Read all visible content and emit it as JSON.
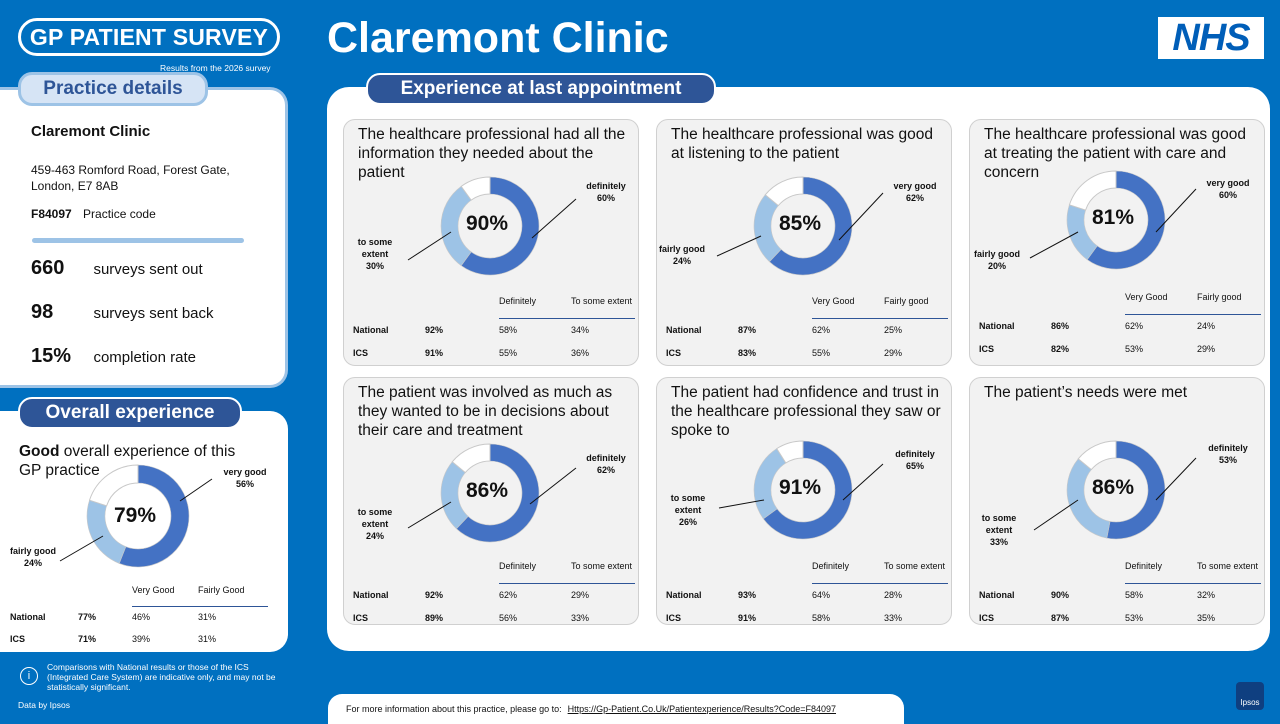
{
  "header": {
    "survey_logo": "GP PATIENT SURVEY",
    "survey_subtitle": "Results from the 2026 survey",
    "title": "Claremont Clinic",
    "nhs_logo": "NHS"
  },
  "practice": {
    "heading": "Practice details",
    "name": "Claremont Clinic",
    "address_line1": "459-463 Romford Road, Forest Gate,",
    "address_line2": "London, E7 8AB",
    "code_value": "F84097",
    "code_label": "Practice code",
    "sent_out_value": "660",
    "sent_out_label": "surveys sent out",
    "sent_back_value": "98",
    "sent_back_label": "surveys sent back",
    "completion_value": "15%",
    "completion_label": "completion rate"
  },
  "overall": {
    "heading": "Overall experience",
    "title_bold": "Good",
    "title_rest": " overall experience of this GP practice",
    "percent": "79%",
    "label_primary": "very good\n56%",
    "label_secondary": "fairly good\n24%",
    "col1": "Very Good",
    "col2": "Fairly Good",
    "rows": [
      {
        "label": "National",
        "total": "77%",
        "v1": "46%",
        "v2": "31%"
      },
      {
        "label": "ICS",
        "total": "71%",
        "v1": "39%",
        "v2": "31%"
      }
    ]
  },
  "experience": {
    "heading": "Experience at last appointment",
    "cards": [
      {
        "title": "The healthcare professional had all the information they needed about the patient",
        "percent": "90%",
        "label_primary": "definitely\n60%",
        "label_secondary": "to some\nextent\n30%",
        "col1": "Definitely",
        "col2": "To some extent",
        "rows": [
          {
            "label": "National",
            "total": "92%",
            "v1": "58%",
            "v2": "34%"
          },
          {
            "label": "ICS",
            "total": "91%",
            "v1": "55%",
            "v2": "36%"
          }
        ]
      },
      {
        "title": "The healthcare professional was good at listening to the patient",
        "percent": "85%",
        "label_primary": "very good\n62%",
        "label_secondary": "fairly good\n24%",
        "col1": "Very Good",
        "col2": "Fairly good",
        "rows": [
          {
            "label": "National",
            "total": "87%",
            "v1": "62%",
            "v2": "25%"
          },
          {
            "label": "ICS",
            "total": "83%",
            "v1": "55%",
            "v2": "29%"
          }
        ]
      },
      {
        "title": "The healthcare professional was good at treating the patient with care and concern",
        "percent": "81%",
        "label_primary": "very good\n60%",
        "label_secondary": "fairly good\n20%",
        "col1": "Very Good",
        "col2": "Fairly good",
        "rows": [
          {
            "label": "National",
            "total": "86%",
            "v1": "62%",
            "v2": "24%"
          },
          {
            "label": "ICS",
            "total": "82%",
            "v1": "53%",
            "v2": "29%"
          }
        ]
      },
      {
        "title": "The patient was involved as much as they wanted to be in decisions about their care and treatment",
        "percent": "86%",
        "label_primary": "definitely\n62%",
        "label_secondary": "to some\nextent\n24%",
        "col1": "Definitely",
        "col2": "To some extent",
        "rows": [
          {
            "label": "National",
            "total": "92%",
            "v1": "62%",
            "v2": "29%"
          },
          {
            "label": "ICS",
            "total": "89%",
            "v1": "56%",
            "v2": "33%"
          }
        ]
      },
      {
        "title": "The patient had confidence and trust in the healthcare professional they saw or spoke to",
        "percent": "91%",
        "label_primary": "definitely\n65%",
        "label_secondary": "to some\nextent\n26%",
        "col1": "Definitely",
        "col2": "To some extent",
        "rows": [
          {
            "label": "National",
            "total": "93%",
            "v1": "64%",
            "v2": "28%"
          },
          {
            "label": "ICS",
            "total": "91%",
            "v1": "58%",
            "v2": "33%"
          }
        ]
      },
      {
        "title": "The patient’s needs were met",
        "percent": "86%",
        "label_primary": "definitely\n53%",
        "label_secondary": "to some\nextent\n33%",
        "col1": "Definitely",
        "col2": "To some extent",
        "rows": [
          {
            "label": "National",
            "total": "90%",
            "v1": "58%",
            "v2": "32%"
          },
          {
            "label": "ICS",
            "total": "87%",
            "v1": "53%",
            "v2": "35%"
          }
        ]
      }
    ]
  },
  "footer": {
    "info_icon": "i",
    "note": "Comparisons with National results or those of the ICS (Integrated Care System) are indicative only, and may not be statistically significant.",
    "data_by": "Data by Ipsos",
    "more_info": "For more information about this practice, please go to:",
    "link": "Https://Gp-Patient.Co.Uk/Patientexperience/Results?Code=F84097",
    "ipsos_logo": "Ipsos"
  },
  "colors": {
    "background": "#0070c0",
    "dark_blue": "#2e5597",
    "primary_segment": "#4472c4",
    "secondary_segment": "#9dc3e6"
  },
  "chart_data": [
    {
      "type": "pie",
      "name": "overall",
      "values": [
        56,
        24,
        20
      ],
      "categories": [
        "very good",
        "fairly good",
        "other"
      ]
    },
    {
      "type": "pie",
      "name": "card1",
      "values": [
        60,
        30,
        10
      ],
      "categories": [
        "definitely",
        "to some extent",
        "other"
      ]
    },
    {
      "type": "pie",
      "name": "card2",
      "values": [
        62,
        24,
        14
      ],
      "categories": [
        "very good",
        "fairly good",
        "other"
      ]
    },
    {
      "type": "pie",
      "name": "card3",
      "values": [
        60,
        20,
        20
      ],
      "categories": [
        "very good",
        "fairly good",
        "other"
      ]
    },
    {
      "type": "pie",
      "name": "card4",
      "values": [
        62,
        24,
        14
      ],
      "categories": [
        "definitely",
        "to some extent",
        "other"
      ]
    },
    {
      "type": "pie",
      "name": "card5",
      "values": [
        65,
        26,
        9
      ],
      "categories": [
        "definitely",
        "to some extent",
        "other"
      ]
    },
    {
      "type": "pie",
      "name": "card6",
      "values": [
        53,
        33,
        14
      ],
      "categories": [
        "definitely",
        "to some extent",
        "other"
      ]
    }
  ]
}
